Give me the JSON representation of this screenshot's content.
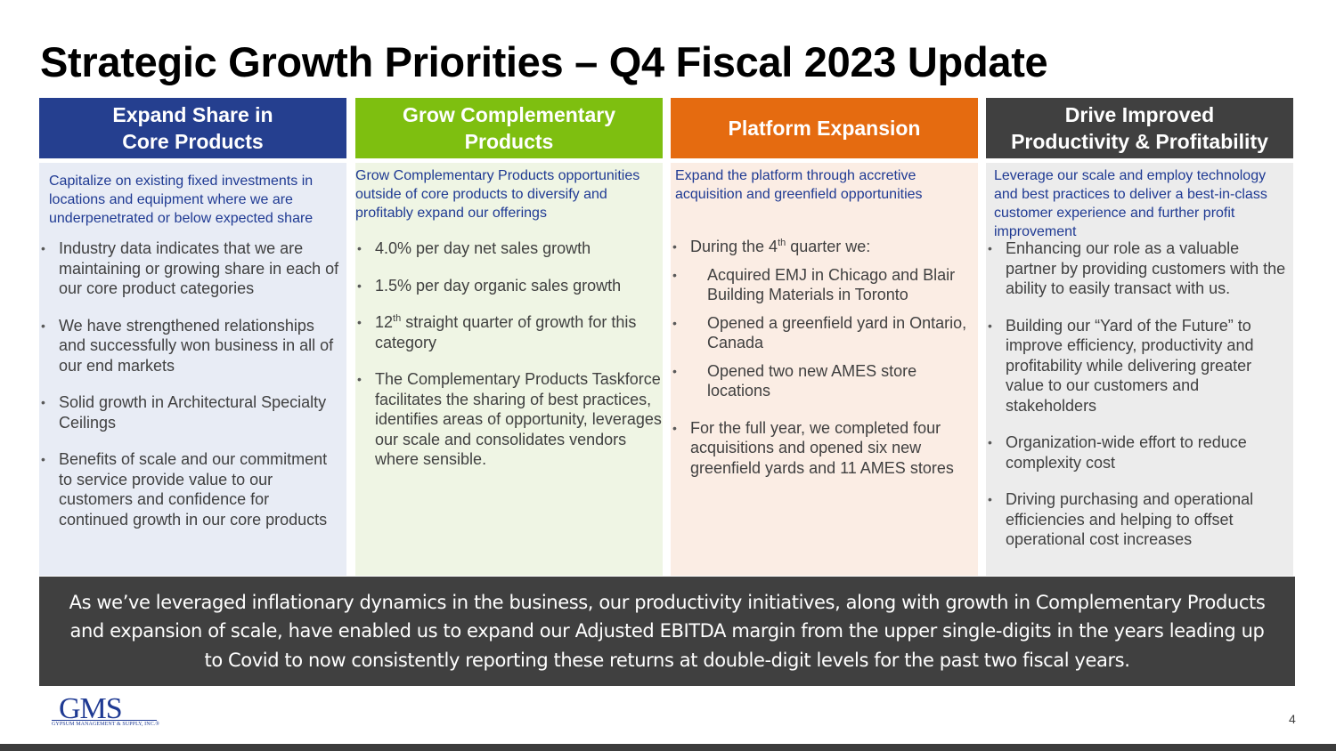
{
  "slide": {
    "title": "Strategic Growth Priorities – Q4 Fiscal 2023 Update",
    "page_number": "4"
  },
  "columns": [
    {
      "header_line1": "Expand Share in",
      "header_line2": "Core Products",
      "header_color": "#253f8f",
      "body_color": "#e8ecf5",
      "intro": "Capitalize on existing fixed investments in locations and equipment where we are underpenetrated or below expected share",
      "bullets": [
        "Industry data indicates that we are maintaining or growing share in each of our core product categories",
        "We have strengthened relationships and successfully won business in all of our end markets",
        "Solid growth in Architectural Specialty Ceilings",
        "Benefits of scale and our commitment to service provide value to our customers and confidence for continued growth in our core products"
      ]
    },
    {
      "header_line1": "Grow Complementary",
      "header_line2": "Products",
      "header_color": "#7ebf10",
      "body_color": "#eff5e4",
      "intro": "Grow Complementary Products opportunities outside of core products to diversify and profitably expand our offerings",
      "bullets": [
        "4.0% per day net sales growth",
        "1.5% per day organic sales growth",
        {
          "pre": "12",
          "sup": "th",
          "post": " straight quarter of growth for this category"
        },
        "The Complementary Products Taskforce facilitates the sharing of best practices, identifies areas of opportunity, leverages our scale and consolidates vendors where sensible."
      ]
    },
    {
      "header_line1": "Platform Expansion",
      "header_color": "#e56b10",
      "body_color": "#fbede4",
      "intro": "Expand the platform through accretive acquisition and greenfield opportunities",
      "lead": {
        "pre": "During the 4",
        "sup": "th",
        "post": " quarter we:"
      },
      "sub_bullets": [
        "Acquired EMJ in Chicago and Blair Building Materials in Toronto",
        "Opened a greenfield yard in Ontario, Canada",
        "Opened two new AMES store locations"
      ],
      "bullets": [
        "For the full year, we completed four acquisitions and opened six new greenfield yards and 11 AMES stores"
      ]
    },
    {
      "header_line1": "Drive Improved",
      "header_line2": "Productivity & Profitability",
      "header_color": "#404040",
      "body_color": "#ececec",
      "intro": "Leverage our scale and employ technology and best practices to deliver a best-in-class customer experience and further profit improvement",
      "bullets": [
        "Enhancing our role as a valuable partner by providing customers with the ability to easily transact with us.",
        "Building our “Yard of the Future” to improve efficiency, productivity and profitability while delivering greater value to our customers and stakeholders",
        "Organization-wide effort to reduce complexity cost",
        "Driving purchasing and operational efficiencies and helping to offset operational cost increases"
      ]
    }
  ],
  "footer": {
    "text": "As we’ve leveraged inflationary dynamics in the business, our productivity initiatives, along with growth in Complementary Products and expansion of scale, have enabled us to expand our Adjusted EBITDA margin from the upper single-digits in the years leading up to Covid to now consistently reporting these returns at double-digit levels for the past two fiscal years."
  },
  "logo": {
    "name": "GMS",
    "tagline": "GYPSUM MANAGEMENT & SUPPLY, INC.",
    "mark": "®",
    "color": "#1f3a93"
  }
}
